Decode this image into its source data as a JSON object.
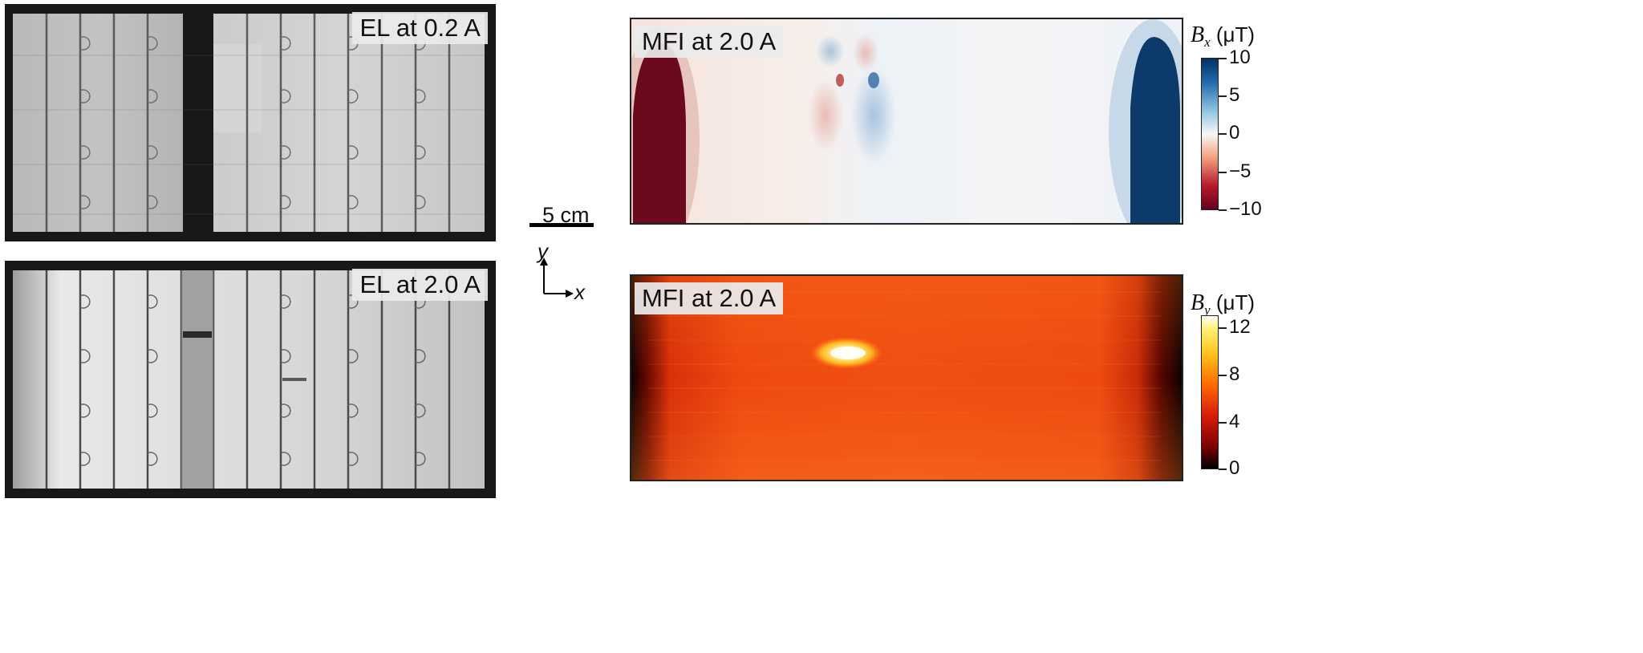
{
  "panels": {
    "el_low": {
      "label": "EL at 0.2 A"
    },
    "el_high": {
      "label": "EL at 2.0 A"
    },
    "mfi_bx": {
      "label": "MFI at 2.0 A"
    },
    "mfi_by": {
      "label": "MFI at 2.0 A"
    }
  },
  "scale_bar": {
    "label": "5 cm"
  },
  "axes": {
    "y": "y",
    "x": "x"
  },
  "colorbars": {
    "bx": {
      "symbol": "B",
      "sub": "x",
      "unit": " (μT)",
      "ticks": [
        "10",
        "5",
        "0",
        "−5",
        "−10"
      ],
      "range": [
        -10,
        10
      ],
      "colors": [
        "#67001f",
        "#f7f7f7",
        "#053061"
      ]
    },
    "by": {
      "symbol": "B",
      "sub": "y",
      "unit": " (μT)",
      "ticks": [
        "12",
        "8",
        "4",
        "0"
      ],
      "range": [
        0,
        13
      ],
      "colors": [
        "#000000",
        "#c81e0a",
        "#ff6a00",
        "#ffd23a",
        "#ffffff"
      ]
    }
  }
}
